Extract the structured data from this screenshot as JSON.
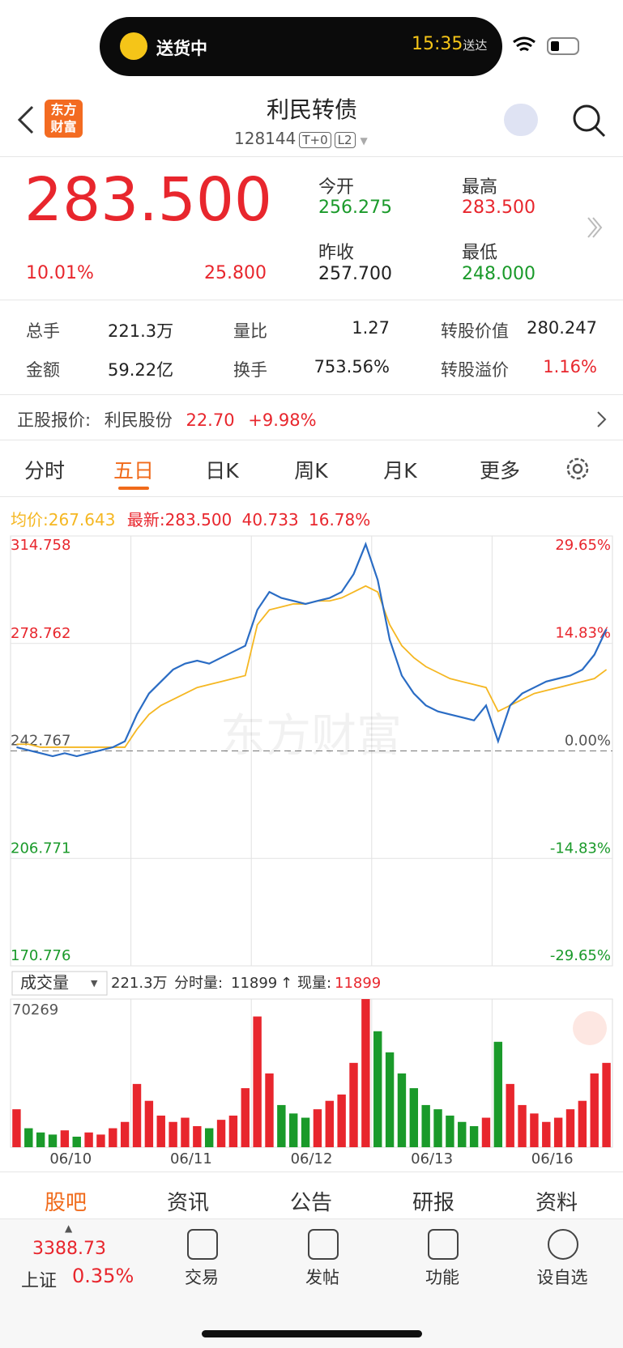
{
  "status": {
    "activity": "送货中",
    "time": "15:35",
    "time_suffix": "送达"
  },
  "header": {
    "logo": [
      "东方",
      "财富"
    ],
    "title": "利民转债",
    "code": "128144",
    "tags": [
      "T+0",
      "L2"
    ]
  },
  "quote": {
    "price": "283.500",
    "pct": "10.01%",
    "change": "25.800",
    "fields": [
      {
        "label": "今开",
        "value": "256.275"
      },
      {
        "label": "最高",
        "value": "283.500"
      },
      {
        "label": "昨收",
        "value": "257.700"
      },
      {
        "label": "最低",
        "value": "248.000"
      }
    ]
  },
  "stats": [
    [
      {
        "label": "总手",
        "value": "221.3万"
      },
      {
        "label": "量比",
        "value": "1.27"
      },
      {
        "label": "转股价值",
        "value": "280.247"
      }
    ],
    [
      {
        "label": "金额",
        "value": "59.22亿"
      },
      {
        "label": "换手",
        "value": "753.56%"
      },
      {
        "label": "转股溢价",
        "value": "1.16%"
      }
    ]
  ],
  "stock": {
    "label": "正股报价:",
    "name": "利民股份",
    "price": "22.70",
    "pct": "+9.98%"
  },
  "tabs": [
    "分时",
    "五日",
    "日K",
    "周K",
    "月K",
    "更多"
  ],
  "summary": {
    "avg_label": "均价:",
    "avg": "267.643",
    "latest_label": "最新:",
    "latest": "283.500",
    "change": "40.733",
    "pct": "16.78%"
  },
  "chart_data": {
    "type": "line",
    "watermark": "东方财富",
    "days": [
      "06/10",
      "06/11",
      "06/12",
      "06/13",
      "06/16"
    ],
    "ylim": [
      170.776,
      314.758
    ],
    "yticks": [
      314.758,
      278.762,
      242.767,
      206.771,
      170.776
    ],
    "y2lim": [
      -29.65,
      29.65
    ],
    "y2ticks": [
      {
        "value": 29.65,
        "label": "29.65%"
      },
      {
        "value": 14.83,
        "label": "14.83%"
      },
      {
        "value": 0,
        "label": "0.00%"
      },
      {
        "value": -14.83,
        "label": "-14.83%"
      },
      {
        "value": -29.65,
        "label": "-29.65%"
      }
    ],
    "series": [
      {
        "name": "price",
        "color": "#2a6cc4",
        "values": [
          244,
          243,
          242,
          241,
          242,
          241,
          242,
          243,
          244,
          246,
          255,
          262,
          266,
          270,
          272,
          273,
          272,
          274,
          276,
          278,
          290,
          296,
          294,
          293,
          292,
          293,
          294,
          296,
          302,
          312,
          300,
          280,
          268,
          262,
          258,
          256,
          255,
          254,
          253,
          258,
          246,
          258,
          262,
          264,
          266,
          267,
          268,
          270,
          275,
          283.5
        ]
      },
      {
        "name": "avg",
        "color": "#f5b722",
        "values": [
          245,
          245,
          244,
          244,
          244,
          244,
          244,
          244,
          244,
          244,
          250,
          255,
          258,
          260,
          262,
          264,
          265,
          266,
          267,
          268,
          285,
          290,
          291,
          292,
          292,
          293,
          293,
          294,
          296,
          298,
          296,
          285,
          278,
          274,
          271,
          269,
          267,
          266,
          265,
          264,
          256,
          258,
          260,
          262,
          263,
          264,
          265,
          266,
          267,
          270
        ]
      }
    ],
    "volume": {
      "title": "成交量",
      "total": "221.3万",
      "tick_label": "分时量:",
      "tick_value": "11899",
      "arrow": "↑",
      "now_label": "现量:",
      "now_value": "11899",
      "ylim": [
        0,
        70269
      ],
      "yticks": [
        70269
      ],
      "values": [
        18000,
        9000,
        7000,
        6000,
        8000,
        5000,
        7000,
        6000,
        9000,
        12000,
        30000,
        22000,
        15000,
        12000,
        14000,
        10000,
        9000,
        13000,
        15000,
        28000,
        62000,
        35000,
        20000,
        16000,
        14000,
        18000,
        22000,
        25000,
        40000,
        70269,
        55000,
        45000,
        35000,
        28000,
        20000,
        18000,
        15000,
        12000,
        10000,
        14000,
        50000,
        30000,
        20000,
        16000,
        12000,
        14000,
        18000,
        22000,
        35000,
        40000
      ]
    }
  },
  "bottom_tabs": [
    "股吧",
    "资讯",
    "公告",
    "研报",
    "资料"
  ],
  "index": {
    "value": "3388.73",
    "name": "上证",
    "pct": "0.35%"
  },
  "actions": [
    "交易",
    "发帖",
    "功能",
    "设自选"
  ]
}
